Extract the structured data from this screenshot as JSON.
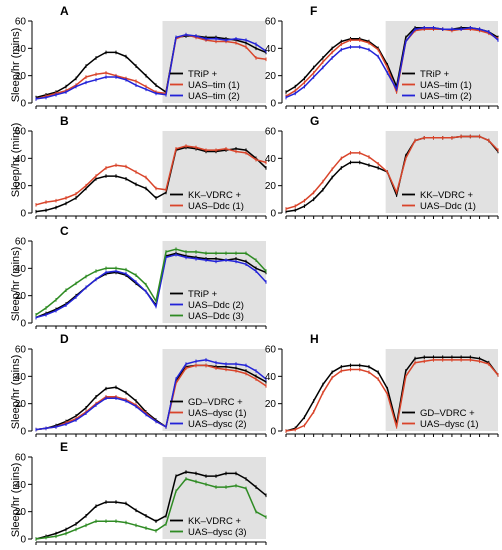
{
  "y_axis_label": "Sleep/hr (mins)",
  "colors": {
    "control": "#000000",
    "red": "#d9442a",
    "blue": "#2323d8",
    "green": "#2e8b23",
    "shade": "#e1e1e1"
  },
  "chart_data": [
    {
      "panel": "A",
      "type": "line",
      "ylim": [
        0,
        60
      ],
      "yticks": [
        "0",
        "20",
        "40",
        "60"
      ],
      "x": [
        1,
        2,
        3,
        4,
        5,
        6,
        7,
        8,
        9,
        10,
        11,
        12,
        13,
        14,
        15,
        16,
        17,
        18,
        19,
        20,
        21,
        22,
        23,
        24
      ],
      "series": [
        {
          "name": "TRiP +",
          "color": "black",
          "values": [
            4,
            6,
            8,
            12,
            18,
            27,
            33,
            37,
            37,
            34,
            27,
            20,
            13,
            8,
            48,
            49,
            49,
            48,
            48,
            47,
            46,
            44,
            40,
            37
          ]
        },
        {
          "name": "UAS–tim (1)",
          "color": "red",
          "values": [
            3,
            5,
            7,
            9,
            13,
            19,
            21,
            22,
            20,
            18,
            16,
            12,
            8,
            7,
            47,
            50,
            48,
            46,
            45,
            45,
            44,
            41,
            33,
            32
          ]
        },
        {
          "name": "UAS–tim (2)",
          "color": "blue",
          "values": [
            3,
            4,
            6,
            8,
            12,
            15,
            17,
            19,
            19,
            17,
            13,
            10,
            7,
            6,
            48,
            50,
            49,
            47,
            47,
            46,
            47,
            46,
            43,
            38
          ]
        }
      ]
    },
    {
      "panel": "F",
      "type": "line",
      "ylim": [
        0,
        60
      ],
      "yticks": [
        "0",
        "20",
        "40",
        "60"
      ],
      "x": [
        1,
        2,
        3,
        4,
        5,
        6,
        7,
        8,
        9,
        10,
        11,
        12,
        13,
        14,
        15,
        16,
        17,
        18,
        19,
        20,
        21,
        22,
        23,
        24
      ],
      "series": [
        {
          "name": "TRiP +",
          "color": "black",
          "values": [
            8,
            12,
            18,
            26,
            33,
            40,
            45,
            47,
            47,
            45,
            40,
            28,
            12,
            48,
            55,
            55,
            55,
            54,
            54,
            55,
            55,
            54,
            52,
            48
          ]
        },
        {
          "name": "UAS–tim (1)",
          "color": "red",
          "values": [
            5,
            9,
            15,
            22,
            30,
            37,
            43,
            46,
            46,
            44,
            39,
            26,
            8,
            45,
            53,
            54,
            54,
            54,
            53,
            54,
            54,
            53,
            51,
            47
          ]
        },
        {
          "name": "UAS–tim (2)",
          "color": "blue",
          "values": [
            4,
            7,
            12,
            19,
            26,
            33,
            39,
            41,
            41,
            39,
            34,
            22,
            10,
            45,
            54,
            55,
            55,
            54,
            54,
            54,
            55,
            54,
            52,
            46
          ]
        }
      ]
    },
    {
      "panel": "B",
      "type": "line",
      "ylim": [
        0,
        60
      ],
      "yticks": [
        "0",
        "20",
        "40",
        "60"
      ],
      "x": [
        1,
        2,
        3,
        4,
        5,
        6,
        7,
        8,
        9,
        10,
        11,
        12,
        13,
        14,
        15,
        16,
        17,
        18,
        19,
        20,
        21,
        22,
        23,
        24
      ],
      "series": [
        {
          "name": "KK–VDRC +",
          "color": "black",
          "values": [
            1,
            2,
            4,
            7,
            11,
            18,
            25,
            27,
            27,
            25,
            21,
            18,
            11,
            15,
            46,
            48,
            47,
            45,
            45,
            46,
            47,
            46,
            40,
            33
          ]
        },
        {
          "name": "UAS–Ddc (1)",
          "color": "red",
          "values": [
            6,
            8,
            9,
            11,
            14,
            20,
            27,
            33,
            35,
            34,
            30,
            26,
            18,
            17,
            47,
            49,
            48,
            46,
            46,
            47,
            45,
            44,
            39,
            37
          ]
        }
      ]
    },
    {
      "panel": "G",
      "type": "line",
      "ylim": [
        0,
        60
      ],
      "yticks": [
        "0",
        "20",
        "40",
        "60"
      ],
      "x": [
        1,
        2,
        3,
        4,
        5,
        6,
        7,
        8,
        9,
        10,
        11,
        12,
        13,
        14,
        15,
        16,
        17,
        18,
        19,
        20,
        21,
        22,
        23,
        24
      ],
      "series": [
        {
          "name": "KK–VDRC +",
          "color": "black",
          "values": [
            1,
            2,
            5,
            10,
            17,
            26,
            33,
            37,
            37,
            35,
            33,
            30,
            13,
            42,
            53,
            55,
            55,
            55,
            55,
            56,
            56,
            56,
            53,
            45
          ]
        },
        {
          "name": "UAS–Ddc (1)",
          "color": "red",
          "values": [
            3,
            5,
            9,
            15,
            23,
            32,
            40,
            44,
            44,
            41,
            36,
            30,
            15,
            40,
            53,
            55,
            55,
            55,
            55,
            56,
            56,
            56,
            53,
            46
          ]
        }
      ]
    },
    {
      "panel": "C",
      "type": "line",
      "ylim": [
        0,
        60
      ],
      "yticks": [
        "0",
        "20",
        "40",
        "60"
      ],
      "x": [
        1,
        2,
        3,
        4,
        5,
        6,
        7,
        8,
        9,
        10,
        11,
        12,
        13,
        14,
        15,
        16,
        17,
        18,
        19,
        20,
        21,
        22,
        23,
        24
      ],
      "series": [
        {
          "name": "TRiP +",
          "color": "black",
          "values": [
            4,
            7,
            10,
            14,
            20,
            26,
            32,
            36,
            37,
            35,
            29,
            23,
            13,
            49,
            51,
            49,
            48,
            47,
            47,
            46,
            47,
            45,
            40,
            37
          ]
        },
        {
          "name": "UAS–Ddc (2)",
          "color": "blue",
          "values": [
            4,
            6,
            9,
            13,
            19,
            26,
            32,
            37,
            38,
            36,
            30,
            23,
            12,
            48,
            50,
            48,
            47,
            46,
            45,
            46,
            45,
            43,
            38,
            30
          ]
        },
        {
          "name": "UAS–Ddc (3)",
          "color": "green",
          "values": [
            6,
            11,
            17,
            24,
            29,
            34,
            38,
            40,
            40,
            39,
            35,
            28,
            16,
            52,
            54,
            52,
            52,
            51,
            51,
            51,
            51,
            51,
            46,
            38
          ]
        }
      ]
    },
    {
      "panel": "D",
      "type": "line",
      "ylim": [
        0,
        60
      ],
      "yticks": [
        "0",
        "20",
        "40",
        "60"
      ],
      "x": [
        1,
        2,
        3,
        4,
        5,
        6,
        7,
        8,
        9,
        10,
        11,
        12,
        13,
        14,
        15,
        16,
        17,
        18,
        19,
        20,
        21,
        22,
        23,
        24
      ],
      "series": [
        {
          "name": "GD–VDRC +",
          "color": "black",
          "values": [
            1,
            2,
            4,
            7,
            11,
            17,
            25,
            31,
            32,
            28,
            22,
            14,
            8,
            3,
            37,
            47,
            48,
            48,
            47,
            47,
            46,
            44,
            40,
            36
          ]
        },
        {
          "name": "UAS–dysc (1)",
          "color": "red",
          "values": [
            1,
            2,
            3,
            6,
            9,
            14,
            20,
            25,
            25,
            23,
            19,
            13,
            7,
            3,
            35,
            46,
            48,
            48,
            46,
            45,
            44,
            42,
            38,
            33
          ]
        },
        {
          "name": "UAS–dysc (2)",
          "color": "blue",
          "values": [
            1,
            2,
            3,
            5,
            8,
            13,
            19,
            24,
            24,
            22,
            18,
            12,
            7,
            3,
            38,
            49,
            51,
            52,
            50,
            49,
            49,
            48,
            44,
            38
          ]
        }
      ]
    },
    {
      "panel": "H",
      "type": "line",
      "ylim": [
        0,
        60
      ],
      "yticks": [
        "0",
        "20",
        "40",
        "60"
      ],
      "x": [
        1,
        2,
        3,
        4,
        5,
        6,
        7,
        8,
        9,
        10,
        11,
        12,
        13,
        14,
        15,
        16,
        17,
        18,
        19,
        20,
        21,
        22,
        23,
        24
      ],
      "series": [
        {
          "name": "GD–VDRC +",
          "color": "black",
          "values": [
            0,
            2,
            10,
            22,
            34,
            43,
            47,
            48,
            48,
            47,
            43,
            31,
            5,
            44,
            53,
            54,
            54,
            54,
            54,
            54,
            54,
            53,
            50,
            41
          ]
        },
        {
          "name": "UAS–dysc (1)",
          "color": "red",
          "values": [
            0,
            1,
            4,
            14,
            28,
            39,
            44,
            45,
            45,
            43,
            38,
            27,
            3,
            40,
            50,
            51,
            52,
            52,
            52,
            52,
            52,
            51,
            49,
            41
          ]
        }
      ]
    },
    {
      "panel": "E",
      "type": "line",
      "ylim": [
        0,
        60
      ],
      "yticks": [
        "0",
        "20",
        "40",
        "60"
      ],
      "x": [
        1,
        2,
        3,
        4,
        5,
        6,
        7,
        8,
        9,
        10,
        11,
        12,
        13,
        14,
        15,
        16,
        17,
        18,
        19,
        20,
        21,
        22,
        23,
        24
      ],
      "series": [
        {
          "name": "KK–VDRC +",
          "color": "black",
          "values": [
            0,
            2,
            4,
            7,
            11,
            17,
            24,
            27,
            27,
            26,
            21,
            17,
            13,
            17,
            46,
            49,
            48,
            46,
            46,
            48,
            48,
            44,
            38,
            32
          ]
        },
        {
          "name": "UAS–dysc (3)",
          "color": "green",
          "values": [
            0,
            1,
            2,
            4,
            7,
            10,
            13,
            13,
            13,
            12,
            10,
            8,
            6,
            11,
            35,
            44,
            42,
            40,
            38,
            38,
            39,
            37,
            20,
            16
          ]
        }
      ]
    }
  ]
}
